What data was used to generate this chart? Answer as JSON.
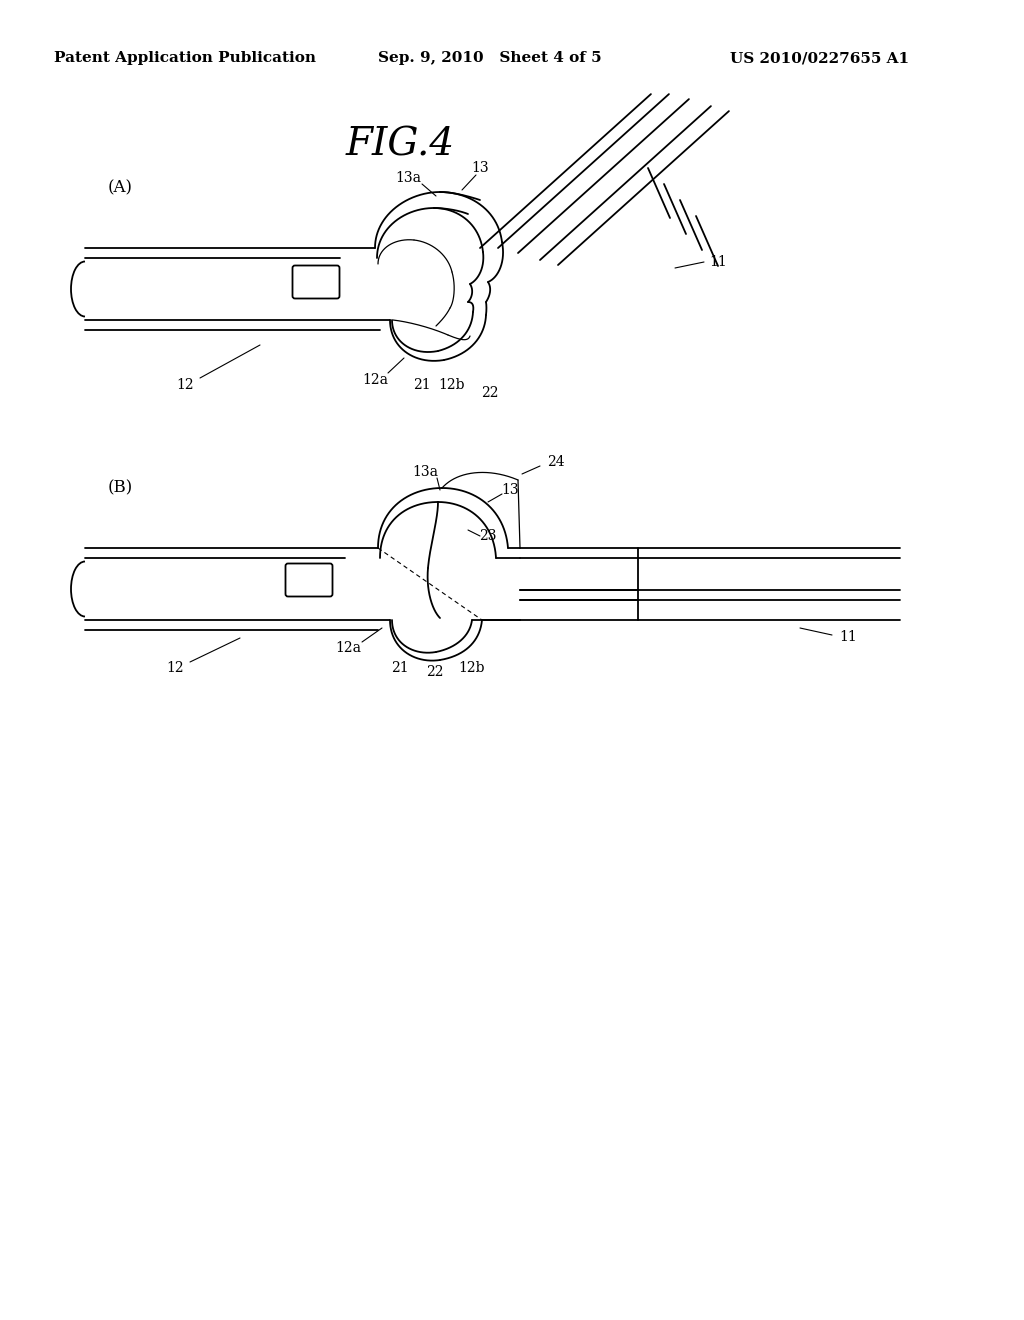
{
  "title": "FIG.4",
  "header_left": "Patent Application Publication",
  "header_center": "Sep. 9, 2010   Sheet 4 of 5",
  "header_right": "US 2010/0227655 A1",
  "background_color": "#ffffff",
  "line_color": "#000000",
  "label_A": "(A)",
  "label_B": "(B)",
  "fig_title_fontsize": 28,
  "header_fontsize": 11,
  "label_fontsize": 12,
  "annotation_fontsize": 10
}
